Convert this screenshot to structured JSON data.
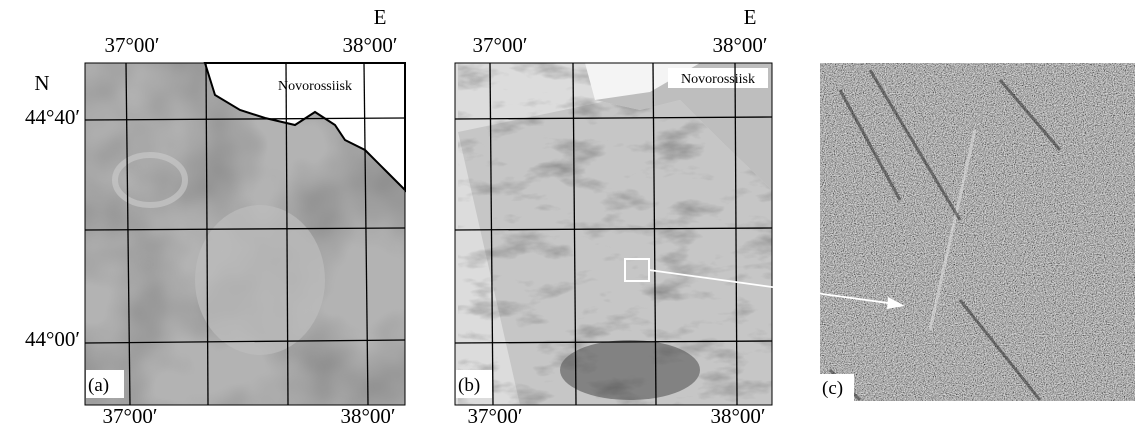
{
  "left_axis": {
    "direction": "N",
    "ticks": [
      "44°40′",
      "44°00′"
    ]
  },
  "panels": [
    {
      "label": "(a)",
      "direction": "E",
      "top_ticks": [
        "37°00′",
        "38°00′"
      ],
      "bottom_ticks": [
        "37°00′",
        "38°00′"
      ],
      "city": "Novorossiisk"
    },
    {
      "label": "(b)",
      "direction": "E",
      "top_ticks": [
        "37°00′",
        "38°00′"
      ],
      "bottom_ticks": [
        "37°00′",
        "38°00′"
      ],
      "city": "Novorossiisk"
    },
    {
      "label": "(c)"
    }
  ]
}
